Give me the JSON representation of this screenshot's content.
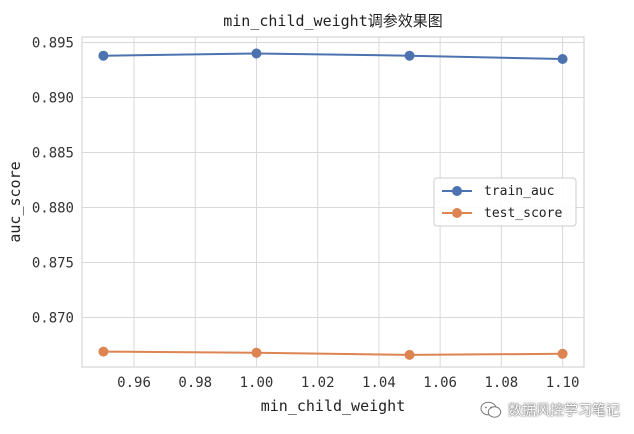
{
  "chart_data": {
    "type": "line",
    "title": "min_child_weight调参效果图",
    "xlabel": "min_child_weight",
    "ylabel": "auc_score",
    "xlim": [
      0.943,
      1.107
    ],
    "ylim": [
      0.8655,
      0.8955
    ],
    "xticks": [
      0.96,
      0.98,
      1.0,
      1.02,
      1.04,
      1.06,
      1.08,
      1.1
    ],
    "xtick_labels": [
      "0.96",
      "0.98",
      "1.00",
      "1.02",
      "1.04",
      "1.06",
      "1.08",
      "1.10"
    ],
    "yticks": [
      0.87,
      0.875,
      0.88,
      0.885,
      0.89,
      0.895
    ],
    "ytick_labels": [
      "0.870",
      "0.875",
      "0.880",
      "0.885",
      "0.890",
      "0.895"
    ],
    "grid": true,
    "legend_position": "right",
    "x": [
      0.95,
      1.0,
      1.05,
      1.1
    ],
    "series": [
      {
        "name": "train_auc",
        "color": "#4c72b0",
        "values": [
          0.8938,
          0.894,
          0.8938,
          0.8935
        ]
      },
      {
        "name": "test_score",
        "color": "#dd8452",
        "values": [
          0.8669,
          0.8668,
          0.8666,
          0.8667
        ]
      }
    ]
  },
  "watermark": {
    "text": "数据风控学习笔记",
    "icon": "wechat-icon"
  }
}
